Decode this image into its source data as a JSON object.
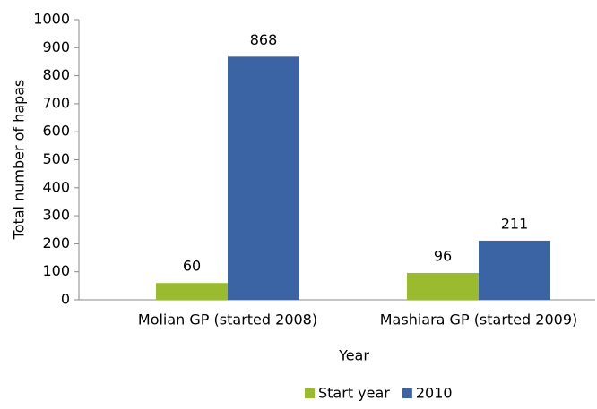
{
  "chart_data": {
    "type": "bar",
    "categories": [
      "Molian GP (started 2008)",
      "Mashiara GP (started 2009)"
    ],
    "series": [
      {
        "name": "Start year",
        "color": "#9bbb2f",
        "values": [
          60,
          96
        ]
      },
      {
        "name": "2010",
        "color": "#3b64a5",
        "values": [
          868,
          211
        ]
      }
    ],
    "ylabel": "Total number of hapas",
    "xlabel": "Year",
    "ylim": [
      0,
      1000
    ],
    "yticks": [
      0,
      100,
      200,
      300,
      400,
      500,
      600,
      700,
      800,
      900,
      1000
    ],
    "grid": false,
    "legend": "bottom"
  }
}
